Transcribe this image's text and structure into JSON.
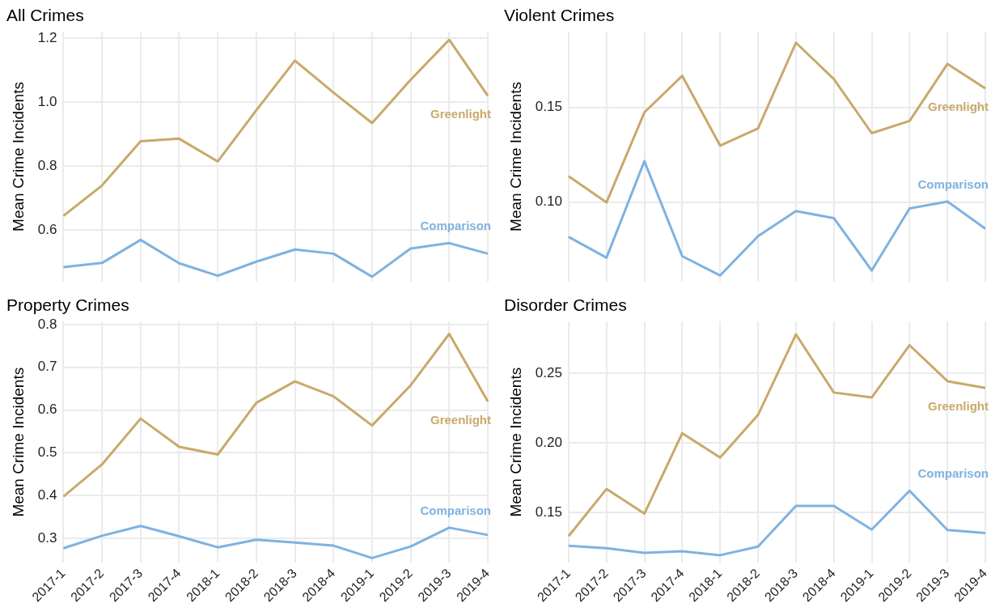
{
  "chart_data": [
    {
      "type": "line",
      "title": "All Crimes",
      "ylabel": "Mean Crime Incidents",
      "categories": [
        "2017-1",
        "2017-2",
        "2017-3",
        "2017-4",
        "2018-1",
        "2018-2",
        "2018-3",
        "2018-4",
        "2019-1",
        "2019-2",
        "2019-3",
        "2019-4"
      ],
      "series": [
        {
          "name": "Greenlight",
          "color": "#c9a96b",
          "values": [
            0.645,
            0.74,
            0.878,
            0.886,
            0.815,
            0.975,
            1.13,
            1.03,
            0.935,
            1.07,
            1.195,
            1.02
          ]
        },
        {
          "name": "Comparison",
          "color": "#7fb2e0",
          "values": [
            0.485,
            0.498,
            0.57,
            0.497,
            0.458,
            0.502,
            0.54,
            0.527,
            0.455,
            0.543,
            0.56,
            0.527
          ]
        }
      ],
      "ylim": [
        0.44,
        1.22
      ],
      "yticks": [
        0.6,
        0.8,
        {
          "value": 1,
          "label": "1.0"
        },
        1.2
      ],
      "grid": true,
      "legend": false,
      "tick_labels": "y",
      "marker": "none",
      "line_style": "solid"
    },
    {
      "type": "line",
      "title": "Violent Crimes",
      "ylabel": "Mean Crime Incidents",
      "categories": [
        "2017-1",
        "2017-2",
        "2017-3",
        "2017-4",
        "2018-1",
        "2018-2",
        "2018-3",
        "2018-4",
        "2019-1",
        "2019-2",
        "2019-3",
        "2019-4"
      ],
      "series": [
        {
          "name": "Greenlight",
          "color": "#c9a96b",
          "values": [
            0.1136,
            0.0998,
            0.1474,
            0.1667,
            0.1298,
            0.1389,
            0.1842,
            0.165,
            0.1364,
            0.1429,
            0.173,
            0.16
          ]
        },
        {
          "name": "Comparison",
          "color": "#7fb2e0",
          "values": [
            0.0816,
            0.0706,
            0.1216,
            0.0714,
            0.0612,
            0.082,
            0.0952,
            0.0915,
            0.0638,
            0.0966,
            0.1003,
            0.0859
          ]
        }
      ],
      "ylim": [
        0.058,
        0.19
      ],
      "yticks": [
        {
          "value": 0.1,
          "label": "0.10"
        },
        0.15
      ],
      "grid": true,
      "legend": false,
      "tick_labels": "y",
      "marker": "none",
      "line_style": "solid"
    },
    {
      "type": "line",
      "title": "Property Crimes",
      "ylabel": "Mean Crime Incidents",
      "categories": [
        "2017-1",
        "2017-2",
        "2017-3",
        "2017-4",
        "2018-1",
        "2018-2",
        "2018-3",
        "2018-4",
        "2019-1",
        "2019-2",
        "2019-3",
        "2019-4"
      ],
      "series": [
        {
          "name": "Greenlight",
          "color": "#c9a96b",
          "values": [
            0.398,
            0.473,
            0.58,
            0.514,
            0.496,
            0.617,
            0.667,
            0.632,
            0.564,
            0.658,
            0.778,
            0.62
          ]
        },
        {
          "name": "Comparison",
          "color": "#7fb2e0",
          "values": [
            0.277,
            0.306,
            0.329,
            0.305,
            0.279,
            0.297,
            0.29,
            0.283,
            0.254,
            0.281,
            0.325,
            0.308
          ]
        }
      ],
      "ylim": [
        0.243,
        0.807
      ],
      "yticks": [
        0.3,
        0.4,
        0.5,
        0.6,
        0.7,
        0.8
      ],
      "grid": true,
      "legend": false,
      "marker": "none",
      "line_style": "solid"
    },
    {
      "type": "line",
      "title": "Disorder Crimes",
      "ylabel": "Mean Crime Incidents",
      "categories": [
        "2017-1",
        "2017-2",
        "2017-3",
        "2017-4",
        "2018-1",
        "2018-2",
        "2018-3",
        "2018-4",
        "2019-1",
        "2019-2",
        "2019-3",
        "2019-4"
      ],
      "series": [
        {
          "name": "Greenlight",
          "color": "#c9a96b",
          "values": [
            0.1331,
            0.1669,
            0.1492,
            0.2069,
            0.1894,
            0.22,
            0.2778,
            0.2361,
            0.2325,
            0.27,
            0.2442,
            0.2394
          ]
        },
        {
          "name": "Comparison",
          "color": "#7fb2e0",
          "values": [
            0.1261,
            0.1244,
            0.1211,
            0.1222,
            0.1194,
            0.1256,
            0.1547,
            0.1547,
            0.1378,
            0.1656,
            0.1375,
            0.1353
          ]
        }
      ],
      "ylim": [
        0.114,
        0.287
      ],
      "yticks": [
        0.15,
        {
          "value": 0.2,
          "label": "0.20"
        },
        0.25
      ],
      "grid": true,
      "legend": false,
      "marker": "none",
      "line_style": "solid"
    }
  ]
}
